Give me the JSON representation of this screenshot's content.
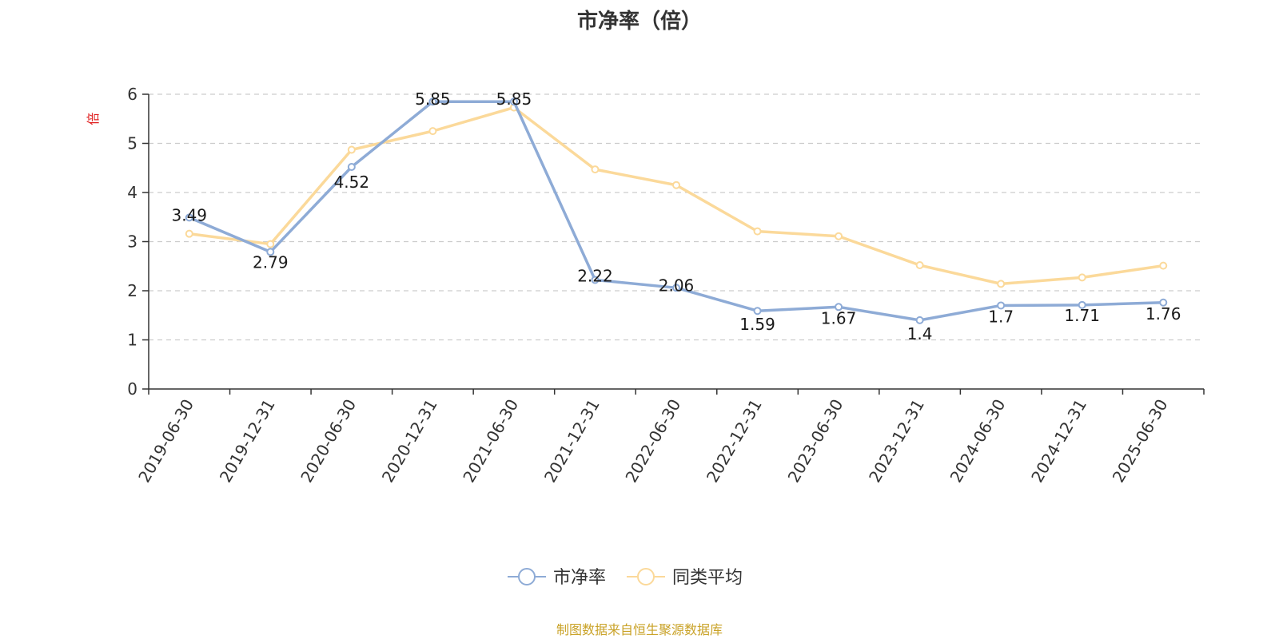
{
  "chart_data": {
    "type": "line",
    "title": "市净率（倍）",
    "ylabel": "倍",
    "xlabel": "",
    "ylim": [
      0,
      6
    ],
    "yticks": [
      0,
      1,
      2,
      3,
      4,
      5,
      6
    ],
    "grid": true,
    "legend_position": "bottom-center",
    "categories": [
      "2019-06-30",
      "2019-12-31",
      "2020-06-30",
      "2020-12-31",
      "2021-06-30",
      "2021-12-31",
      "2022-06-30",
      "2022-12-31",
      "2023-06-30",
      "2023-12-31",
      "2024-06-30",
      "2024-12-31",
      "2025-06-30"
    ],
    "series": [
      {
        "name": "市净率",
        "color": "#8eabd6",
        "values": [
          3.49,
          2.79,
          4.52,
          5.85,
          5.85,
          2.22,
          2.06,
          1.59,
          1.67,
          1.4,
          1.7,
          1.71,
          1.76
        ],
        "labels": [
          "3.49",
          "2.79",
          "4.52",
          "5.85",
          "5.85",
          "2.22",
          "2.06",
          "1.59",
          "1.67",
          "1.4",
          "1.7",
          "1.71",
          "1.76"
        ]
      },
      {
        "name": "同类平均",
        "color": "#fbd99a",
        "values": [
          3.16,
          2.95,
          4.87,
          5.25,
          5.73,
          4.47,
          4.15,
          3.21,
          3.11,
          2.52,
          2.14,
          2.27,
          2.51
        ]
      }
    ]
  },
  "source_note": "制图数据来自恒生聚源数据库",
  "colors": {
    "axis": "#333333",
    "grid": "#cccccc",
    "ylabel": "#e02020",
    "source": "#c9a227"
  }
}
